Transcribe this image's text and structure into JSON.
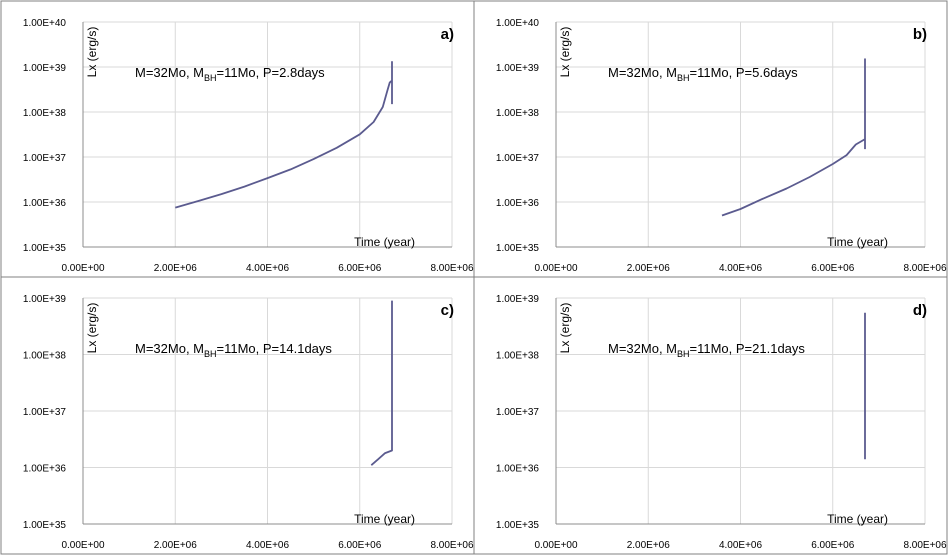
{
  "chart_data": [
    {
      "type": "line",
      "panel_label": "a)",
      "annotation": "M=32Mo, M",
      "annotation_sub": "BH",
      "annotation_mid": "=11Mo, P=2.8days",
      "xlabel": "Time (year)",
      "ylabel": "Lx (erg/s)",
      "xlim": [
        0,
        8000000
      ],
      "ylim": [
        1e+35,
        1e+40
      ],
      "yscale": "log",
      "x_ticks": [
        "0.00E+00",
        "2.00E+06",
        "4.00E+06",
        "6.00E+06",
        "8.00E+06"
      ],
      "y_ticks": [
        "1.00E+35",
        "1.00E+36",
        "1.00E+37",
        "1.00E+38",
        "1.00E+39",
        "1.00E+40"
      ],
      "grid": true,
      "line_color": "#5b5b8f",
      "series": [
        {
          "x": [
            2000000,
            2500000,
            3000000,
            3500000,
            4000000,
            4500000,
            5000000,
            5500000,
            6000000,
            6300000,
            6500000,
            6600000,
            6650000,
            6700000,
            6700000,
            6700000
          ],
          "y": [
            7.5e+35,
            1.05e+36,
            1.5e+36,
            2.2e+36,
            3.4e+36,
            5.3e+36,
            9e+36,
            1.6e+37,
            3.2e+37,
            6e+37,
            1.3e+38,
            3e+38,
            4.5e+38,
            5e+38,
            1.3e+39,
            1.5e+38
          ]
        }
      ]
    },
    {
      "type": "line",
      "panel_label": "b)",
      "annotation": "M=32Mo, M",
      "annotation_sub": "BH",
      "annotation_mid": "=11Mo, P=5.6days",
      "xlabel": "Time (year)",
      "ylabel": "Lx (erg/s)",
      "xlim": [
        0,
        8000000
      ],
      "ylim": [
        1e+35,
        1e+40
      ],
      "yscale": "log",
      "x_ticks": [
        "0.00E+00",
        "2.00E+06",
        "4.00E+06",
        "6.00E+06",
        "8.00E+06"
      ],
      "y_ticks": [
        "1.00E+35",
        "1.00E+36",
        "1.00E+37",
        "1.00E+38",
        "1.00E+39",
        "1.00E+40"
      ],
      "grid": true,
      "line_color": "#5b5b8f",
      "series": [
        {
          "x": [
            3600000,
            4000000,
            4500000,
            5000000,
            5500000,
            6000000,
            6300000,
            6500000,
            6700000,
            6700000,
            6700000
          ],
          "y": [
            5e+35,
            7e+35,
            1.2e+36,
            2e+36,
            3.6e+36,
            7e+36,
            1.1e+37,
            1.9e+37,
            2.5e+37,
            1.5e+39,
            1.5e+37
          ]
        }
      ]
    },
    {
      "type": "line",
      "panel_label": "c)",
      "annotation": "M=32Mo, M",
      "annotation_sub": "BH",
      "annotation_mid": "=11Mo, P=14.1days",
      "xlabel": "Time (year)",
      "ylabel": "Lx (erg/s)",
      "xlim": [
        0,
        8000000
      ],
      "ylim": [
        1e+35,
        1e+39
      ],
      "yscale": "log",
      "x_ticks": [
        "0.00E+00",
        "2.00E+06",
        "4.00E+06",
        "6.00E+06",
        "8.00E+06"
      ],
      "y_ticks": [
        "1.00E+35",
        "1.00E+36",
        "1.00E+37",
        "1.00E+38",
        "1.00E+39"
      ],
      "grid": true,
      "line_color": "#5b5b8f",
      "series": [
        {
          "x": [
            6250000,
            6400000,
            6550000,
            6700000,
            6700000
          ],
          "y": [
            1.1e+36,
            1.4e+36,
            1.8e+36,
            2e+36,
            9e+38
          ]
        }
      ]
    },
    {
      "type": "line",
      "panel_label": "d)",
      "annotation": "M=32Mo, M",
      "annotation_sub": "BH",
      "annotation_mid": "=11Mo, P=21.1days",
      "xlabel": "Time (year)",
      "ylabel": "Lx (erg/s)",
      "xlim": [
        0,
        8000000
      ],
      "ylim": [
        1e+35,
        1e+39
      ],
      "yscale": "log",
      "x_ticks": [
        "0.00E+00",
        "2.00E+06",
        "4.00E+06",
        "6.00E+06",
        "8.00E+06"
      ],
      "y_ticks": [
        "1.00E+35",
        "1.00E+36",
        "1.00E+37",
        "1.00E+38",
        "1.00E+39"
      ],
      "grid": true,
      "line_color": "#5b5b8f",
      "series": [
        {
          "x": [
            6700000,
            6700000
          ],
          "y": [
            1.4e+36,
            5.5e+38
          ]
        }
      ]
    }
  ]
}
